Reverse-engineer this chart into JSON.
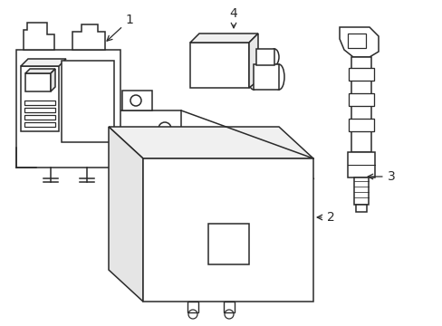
{
  "background_color": "#ffffff",
  "line_color": "#2a2a2a",
  "line_width": 1.1,
  "label_fontsize": 10,
  "figsize": [
    4.89,
    3.6
  ],
  "dpi": 100
}
